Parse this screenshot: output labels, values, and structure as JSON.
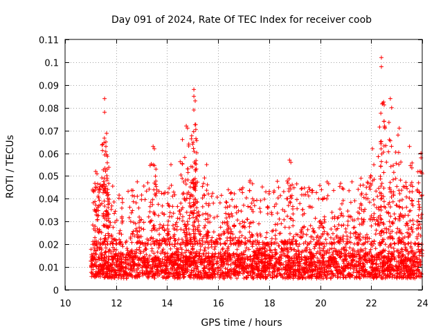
{
  "chart_data": {
    "type": "scatter",
    "title": "Day 091 of 2024, Rate Of TEC Index for receiver coob",
    "xlabel": "GPS time / hours",
    "ylabel": "ROTI / TECUs",
    "xlim": [
      10,
      24
    ],
    "ylim": [
      0,
      0.11
    ],
    "xticks": [
      10,
      12,
      14,
      16,
      18,
      20,
      22,
      24
    ],
    "xtick_labels": [
      "10",
      "12",
      "14",
      "16",
      "18",
      "20",
      "22",
      "24"
    ],
    "yticks": [
      0,
      0.01,
      0.02,
      0.03,
      0.04,
      0.05,
      0.06,
      0.07,
      0.08,
      0.09,
      0.1,
      0.11
    ],
    "ytick_labels": [
      "0",
      "0.01",
      "0.02",
      "0.03",
      "0.04",
      "0.05",
      "0.06",
      "0.07",
      "0.08",
      "0.09",
      "0.1",
      "0.11"
    ],
    "grid": true,
    "marker": "+",
    "color": "#ff0000",
    "series": [
      {
        "name": "ROTI",
        "data_range_x": [
          11.0,
          24.0
        ],
        "typical_band_y": [
          0.005,
          0.02
        ],
        "peaks": [
          {
            "x": 11.55,
            "y": 0.084
          },
          {
            "x": 11.55,
            "y": 0.078
          },
          {
            "x": 11.6,
            "y": 0.065
          },
          {
            "x": 11.6,
            "y": 0.063
          },
          {
            "x": 11.2,
            "y": 0.052
          },
          {
            "x": 11.25,
            "y": 0.051
          },
          {
            "x": 11.65,
            "y": 0.049
          },
          {
            "x": 13.45,
            "y": 0.063
          },
          {
            "x": 13.5,
            "y": 0.062
          },
          {
            "x": 14.15,
            "y": 0.055
          },
          {
            "x": 14.6,
            "y": 0.066
          },
          {
            "x": 14.75,
            "y": 0.072
          },
          {
            "x": 14.8,
            "y": 0.071
          },
          {
            "x": 15.05,
            "y": 0.088
          },
          {
            "x": 15.05,
            "y": 0.085
          },
          {
            "x": 15.1,
            "y": 0.083
          },
          {
            "x": 15.05,
            "y": 0.079
          },
          {
            "x": 15.0,
            "y": 0.064
          },
          {
            "x": 15.55,
            "y": 0.055
          },
          {
            "x": 16.4,
            "y": 0.044
          },
          {
            "x": 17.25,
            "y": 0.048
          },
          {
            "x": 18.8,
            "y": 0.057
          },
          {
            "x": 18.85,
            "y": 0.056
          },
          {
            "x": 20.05,
            "y": 0.044
          },
          {
            "x": 21.6,
            "y": 0.049
          },
          {
            "x": 22.05,
            "y": 0.062
          },
          {
            "x": 22.4,
            "y": 0.102
          },
          {
            "x": 22.4,
            "y": 0.098
          },
          {
            "x": 22.45,
            "y": 0.082
          },
          {
            "x": 22.5,
            "y": 0.074
          },
          {
            "x": 22.75,
            "y": 0.084
          },
          {
            "x": 22.8,
            "y": 0.08
          },
          {
            "x": 23.1,
            "y": 0.071
          },
          {
            "x": 23.05,
            "y": 0.068
          },
          {
            "x": 23.5,
            "y": 0.063
          },
          {
            "x": 23.95,
            "y": 0.06
          },
          {
            "x": 23.95,
            "y": 0.058
          }
        ]
      }
    ]
  }
}
